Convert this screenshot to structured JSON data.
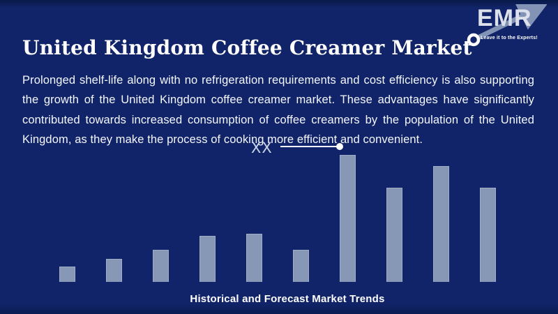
{
  "header": {
    "title": "United Kingdom Coffee Creamer Market",
    "logo": {
      "text": "EMR",
      "tagline": "Leave it to the Experts!"
    }
  },
  "body": {
    "paragraph": "Prolonged shelf-life along with no refrigeration requirements and cost efficiency is also supporting the growth of the United Kingdom coffee creamer market. These advantages have significantly contributed towards increased consumption of coffee creamers by the population of the United Kingdom, as they make the process of cooking more efficient and convenient.",
    "caption": "Historical and Forecast Market Trends"
  },
  "colors": {
    "background": "#112469",
    "bar_fill": "#8798b7",
    "bar_border": "#9fadc6",
    "title_text": "#ffffff",
    "paragraph_text": "#f4f7fb",
    "annotation_text": "#c9d4e8",
    "leader_line": "#ffffff",
    "logo_text": "#dbe0ea",
    "logo_arrow": "#8293b6"
  },
  "chart_data": {
    "type": "bar",
    "title": "Historical and Forecast Market Trends",
    "values": [
      12,
      18,
      25,
      36,
      38,
      25,
      100,
      74,
      91,
      74
    ],
    "values_unit": "percent of tallest bar; actual figures masked as XX placeholder",
    "ylim": [
      0,
      100
    ],
    "x_tick_labels_visible": false,
    "y_axis_visible": false,
    "grid": false,
    "legend": "none",
    "annotation": {
      "label": "XX",
      "target_bar_index": 7,
      "style": "horizontal white leader line ending in a dot above the tallest bar"
    }
  }
}
